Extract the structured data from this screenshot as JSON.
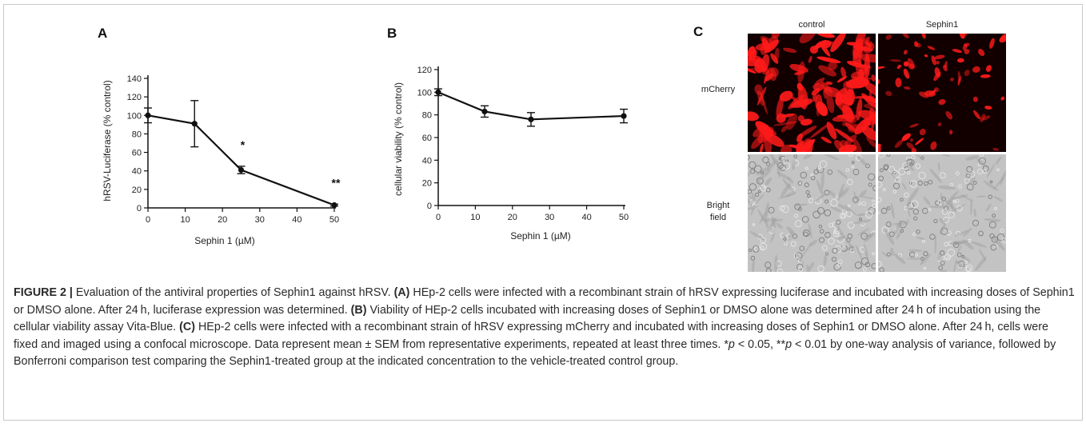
{
  "panels": {
    "A": {
      "letter": "A",
      "chart_data": {
        "type": "line",
        "x": [
          0,
          12.5,
          25,
          50
        ],
        "y": [
          100,
          91,
          41,
          3
        ],
        "err": [
          8,
          25,
          4,
          1
        ],
        "xlabel": "Sephin 1 (µM)",
        "ylabel": "hRSV-Luciferase (% control)",
        "xlim": [
          0,
          50
        ],
        "ylim": [
          0,
          140
        ],
        "xticks": [
          "0",
          "10",
          "20",
          "30",
          "40",
          "50"
        ],
        "yticks": [
          "0",
          "20",
          "40",
          "60",
          "80",
          "100",
          "120",
          "140"
        ],
        "annotations": [
          {
            "x": 25,
            "text": "*"
          },
          {
            "x": 50,
            "text": "**"
          }
        ]
      }
    },
    "B": {
      "letter": "B",
      "chart_data": {
        "type": "line",
        "x": [
          0,
          12.5,
          25,
          50
        ],
        "y": [
          100,
          83,
          76,
          79
        ],
        "err": [
          3,
          5,
          6,
          6
        ],
        "xlabel": "Sephin 1 (µM)",
        "ylabel": "cellular viability (% control)",
        "xlim": [
          0,
          50
        ],
        "ylim": [
          0,
          120
        ],
        "xticks": [
          "0",
          "10",
          "20",
          "30",
          "40",
          "50"
        ],
        "yticks": [
          "0",
          "20",
          "40",
          "60",
          "80",
          "100",
          "120"
        ],
        "annotations": []
      }
    },
    "C": {
      "letter": "C",
      "columns": [
        "control",
        "Sephin1"
      ],
      "rows": [
        "mCherry",
        "Bright\nfield"
      ],
      "colors": {
        "fluorescence": "#ff1a1a",
        "background": "#120000",
        "bright": "#bdbdbd"
      }
    }
  },
  "caption": {
    "label": "FIGURE 2 |",
    "title": " Evaluation of the antiviral properties of Sephin1 against hRSV. ",
    "a_tag": "(A)",
    "a_text": " HEp-2 cells were infected with a recombinant strain of hRSV expressing luciferase and incubated with increasing doses of Sephin1 or DMSO alone. After 24 h, luciferase expression was determined. ",
    "b_tag": "(B)",
    "b_text": " Viability of HEp-2 cells incubated with increasing doses of Sephin1 or DMSO alone was determined after 24 h of incubation using the cellular viability assay Vita-Blue. ",
    "c_tag": "(C)",
    "c_text": " HEp-2 cells were infected with a recombinant strain of hRSV expressing mCherry and incubated with increasing doses of Sephin1 or DMSO alone. After 24 h, cells were fixed and imaged using a confocal microscope. Data represent mean ± SEM from representative experiments, repeated at least three times. *",
    "p1": "p",
    "mid1": " < 0.05, **",
    "p2": "p",
    "tail": " < 0.01 by one-way analysis of variance, followed by Bonferroni comparison test comparing the Sephin1-treated group at the indicated concentration to the vehicle-treated control group."
  }
}
